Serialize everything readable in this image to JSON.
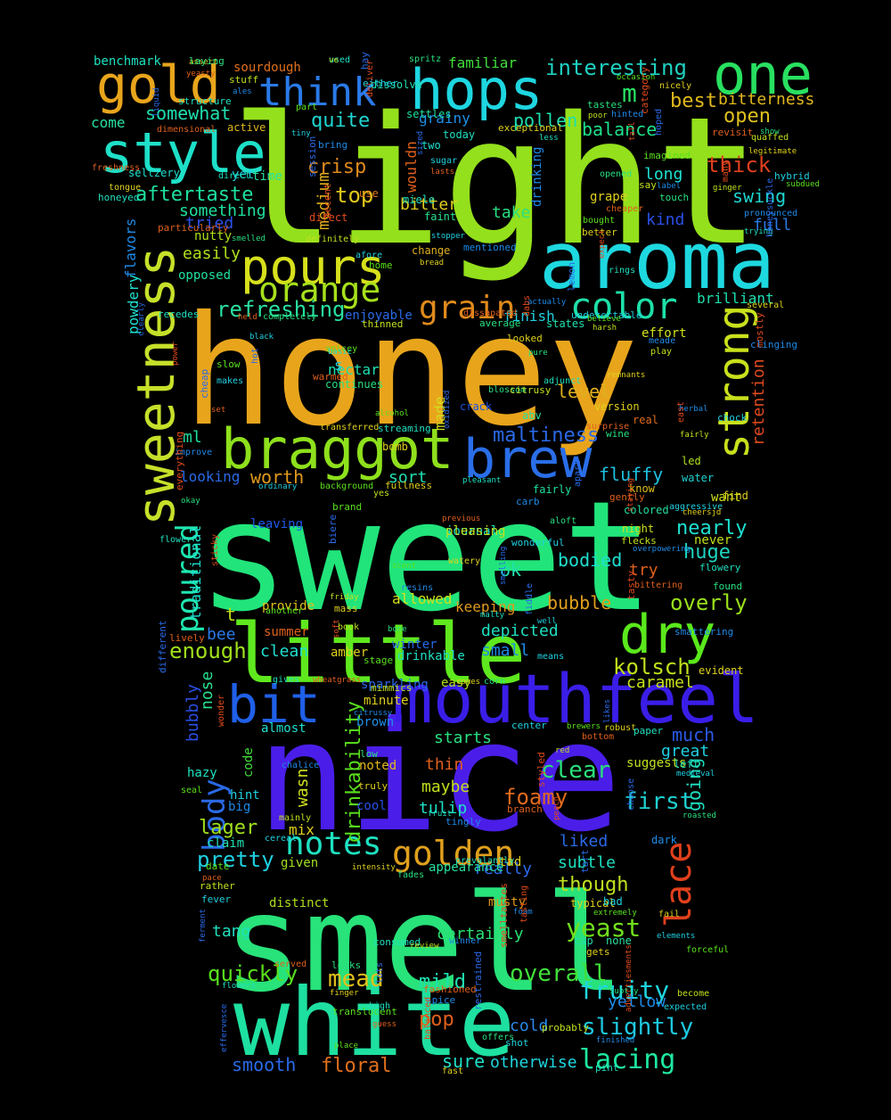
{
  "background": "#000000",
  "palette": [
    "#a8e01c",
    "#e8a51c",
    "#20e878",
    "#4a1ee8",
    "#19d8d8",
    "#d0e02c",
    "#2a70e8",
    "#e05a1c",
    "#1ed0c8",
    "#7ce820"
  ],
  "big_words": [
    {
      "text": "light",
      "color": "#94e01c"
    },
    {
      "text": "honey",
      "color": "#e8a51c"
    },
    {
      "text": "sweet",
      "color": "#21e47a"
    },
    {
      "text": "nice",
      "color": "#4a1ee8"
    },
    {
      "text": "smell",
      "color": "#28e27a"
    },
    {
      "text": "white",
      "color": "#1ee0a0"
    },
    {
      "text": "aroma",
      "color": "#1ed8e0"
    },
    {
      "text": "little",
      "color": "#5fe81e"
    },
    {
      "text": "mouthfeel",
      "color": "#3a1ee8"
    },
    {
      "text": "braggot",
      "color": "#8ee01c"
    },
    {
      "text": "brew",
      "color": "#2a6ee8"
    },
    {
      "text": "sweetness",
      "color": "#c6e02a"
    },
    {
      "text": "hops",
      "color": "#1ed6e0"
    },
    {
      "text": "one",
      "color": "#28e060"
    },
    {
      "text": "gold",
      "color": "#e8a51c"
    },
    {
      "text": "style",
      "color": "#1ee0c8"
    },
    {
      "text": "pours",
      "color": "#d6e01c"
    },
    {
      "text": "dry",
      "color": "#5ae81c"
    },
    {
      "text": "bit",
      "color": "#2060e8"
    },
    {
      "text": "strong",
      "color": "#c8e01c"
    },
    {
      "text": "think",
      "color": "#2a7ae8"
    },
    {
      "text": "orange",
      "color": "#a6e01c"
    },
    {
      "text": "color",
      "color": "#1ee0a8"
    },
    {
      "text": "grain",
      "color": "#e08a1c"
    },
    {
      "text": "golden",
      "color": "#e0a01c"
    },
    {
      "text": "notes",
      "color": "#1ee0c0"
    },
    {
      "text": "lace",
      "color": "#e0401c"
    },
    {
      "text": "body",
      "color": "#2a6ae8"
    },
    {
      "text": "poured",
      "color": "#1ee8b0"
    },
    {
      "text": "lacing",
      "color": "#1ee8a0"
    },
    {
      "text": "fruity",
      "color": "#1ed6e0"
    },
    {
      "text": "mead",
      "color": "#e0c01c"
    },
    {
      "text": "slightly",
      "color": "#1ec8e0"
    },
    {
      "text": "yeast",
      "color": "#70e01c"
    },
    {
      "text": "first",
      "color": "#1ed0d0"
    },
    {
      "text": "clear",
      "color": "#2ae07a"
    },
    {
      "text": "foamy",
      "color": "#e06a1c"
    },
    {
      "text": "overly",
      "color": "#9ae01c"
    },
    {
      "text": "kolsch",
      "color": "#c0e01c"
    },
    {
      "text": "overall",
      "color": "#40e03a"
    },
    {
      "text": "enough",
      "color": "#a0e01c"
    },
    {
      "text": "quickly",
      "color": "#58e01c"
    },
    {
      "text": "refreshing",
      "color": "#28e0a0"
    },
    {
      "text": "interesting",
      "color": "#1ed0c0"
    },
    {
      "text": "balance",
      "color": "#1ee08a"
    },
    {
      "text": "bitterness",
      "color": "#e0b81c"
    },
    {
      "text": "aftertaste",
      "color": "#1ee0a0"
    },
    {
      "text": "somewhat",
      "color": "#1ee0b0"
    },
    {
      "text": "maltiness",
      "color": "#2a6ae8"
    },
    {
      "text": "retention",
      "color": "#e04a1c"
    },
    {
      "text": "drinkability",
      "color": "#5ae01c"
    },
    {
      "text": "pretty",
      "color": "#1ed0e0"
    },
    {
      "text": "lager",
      "color": "#a0e01c"
    },
    {
      "text": "smooth",
      "color": "#2a6ae8"
    },
    {
      "text": "floral",
      "color": "#e0701c"
    },
    {
      "text": "sure",
      "color": "#1ee0c8"
    },
    {
      "text": "otherwise",
      "color": "#1ed6e0"
    },
    {
      "text": "though",
      "color": "#c0e01c"
    },
    {
      "text": "certainly",
      "color": "#28e070"
    },
    {
      "text": "huge",
      "color": "#1ed6c0"
    },
    {
      "text": "nearly",
      "color": "#1ee0d0"
    },
    {
      "text": "bubble",
      "color": "#e0a01c"
    },
    {
      "text": "bodied",
      "color": "#1ee0d0"
    },
    {
      "text": "fluffy",
      "color": "#1ec0e0"
    },
    {
      "text": "thick",
      "color": "#e0401c"
    },
    {
      "text": "open",
      "color": "#e0c01c"
    },
    {
      "text": "best",
      "color": "#e0b81c"
    },
    {
      "text": "m",
      "color": "#28e060"
    },
    {
      "text": "swing",
      "color": "#1ed6d0"
    },
    {
      "text": "crisp",
      "color": "#e08a1c"
    },
    {
      "text": "top",
      "color": "#e0c81c"
    },
    {
      "text": "quite",
      "color": "#1ed6d0"
    },
    {
      "text": "pollen",
      "color": "#1ee0b0"
    },
    {
      "text": "level",
      "color": "#e0b01c"
    },
    {
      "text": "worth",
      "color": "#e09a1c"
    },
    {
      "text": "tulip",
      "color": "#1ee0c8"
    },
    {
      "text": "maybe",
      "color": "#c0e01c"
    },
    {
      "text": "pop",
      "color": "#e0601c"
    },
    {
      "text": "mild",
      "color": "#1ee0b0"
    },
    {
      "text": "cold",
      "color": "#2a8ae8"
    },
    {
      "text": "yellow",
      "color": "#1e8ae8"
    },
    {
      "text": "tang",
      "color": "#1ee0c0"
    },
    {
      "text": "much",
      "color": "#2a5ae8"
    },
    {
      "text": "great",
      "color": "#1ed0e0"
    },
    {
      "text": "going",
      "color": "#1ee0c0"
    },
    {
      "text": "really",
      "color": "#2a6ae8"
    },
    {
      "text": "subtle",
      "color": "#1ee0c0"
    },
    {
      "text": "liked",
      "color": "#2a6ae8"
    },
    {
      "text": "thin",
      "color": "#e0601c"
    },
    {
      "text": "starts",
      "color": "#28e080"
    },
    {
      "text": "t",
      "color": "#c0e01c"
    },
    {
      "text": "ok",
      "color": "#1ee0b0"
    },
    {
      "text": "try",
      "color": "#e0601c"
    },
    {
      "text": "full",
      "color": "#2a7ae8"
    },
    {
      "text": "kind",
      "color": "#2a50e8"
    },
    {
      "text": "long",
      "color": "#1ee0d0"
    },
    {
      "text": "take",
      "color": "#28e080"
    },
    {
      "text": "bitter",
      "color": "#e0d01c"
    },
    {
      "text": "grainy",
      "color": "#1e90e8"
    },
    {
      "text": "medium",
      "color": "#e0b01c"
    },
    {
      "text": "tried",
      "color": "#2a50e8"
    },
    {
      "text": "something",
      "color": "#1ee0a0"
    },
    {
      "text": "easily",
      "color": "#b0e01c"
    },
    {
      "text": "clean",
      "color": "#1ee0d0"
    },
    {
      "text": "bee",
      "color": "#2a7ae8"
    },
    {
      "text": "nose",
      "color": "#28e090"
    },
    {
      "text": "bubbly",
      "color": "#2a50e8"
    },
    {
      "text": "caramel",
      "color": "#c8e01c"
    },
    {
      "text": "small",
      "color": "#1e8ae8"
    },
    {
      "text": "depicted",
      "color": "#1ee0c0"
    },
    {
      "text": "keeping",
      "color": "#e09a1c"
    },
    {
      "text": "allowed",
      "color": "#d0e01c"
    },
    {
      "text": "wasn",
      "color": "#d0e01c"
    },
    {
      "text": "mix",
      "color": "#e0d01c"
    },
    {
      "text": "finish",
      "color": "#1ed0e0"
    },
    {
      "text": "brilliant",
      "color": "#1ee0b0"
    },
    {
      "text": "effort",
      "color": "#d0e01c"
    },
    {
      "text": "wouldn",
      "color": "#e0601c"
    },
    {
      "text": "ml",
      "color": "#1ee0a0"
    },
    {
      "text": "made",
      "color": "#d0e01c"
    },
    {
      "text": "traditional",
      "color": "#1ee0d0"
    },
    {
      "text": "flavors",
      "color": "#1e8ae8"
    },
    {
      "text": "powdery",
      "color": "#1ee0d0"
    },
    {
      "text": "come",
      "color": "#28e0a0"
    },
    {
      "text": "enjoyable",
      "color": "#2a6ae8"
    },
    {
      "text": "benchmark",
      "color": "#1ee0c0"
    },
    {
      "text": "familiar",
      "color": "#40e03a"
    },
    {
      "text": "drinking",
      "color": "#1e8ae8"
    },
    {
      "text": "nectar",
      "color": "#1ee0b0"
    },
    {
      "text": "s",
      "color": "#1ed0e0"
    },
    {
      "text": "sort",
      "color": "#1ee0b0"
    },
    {
      "text": "looking",
      "color": "#2a6ae8"
    },
    {
      "text": "leaving",
      "color": "#1e5ae8"
    },
    {
      "text": "opposed",
      "color": "#1ee0a0"
    },
    {
      "text": "nutty",
      "color": "#b0e01c"
    },
    {
      "text": "claim",
      "color": "#1ee0b0"
    },
    {
      "text": "hint",
      "color": "#1ed0e0"
    },
    {
      "text": "code",
      "color": "#40e03a"
    },
    {
      "text": "hazy",
      "color": "#1ee0c0"
    },
    {
      "text": "big",
      "color": "#1e8ae8"
    },
    {
      "text": "cool",
      "color": "#2a50e8"
    },
    {
      "text": "noted",
      "color": "#e0b81c"
    },
    {
      "text": "brown",
      "color": "#1e90e8"
    },
    {
      "text": "sparkling",
      "color": "#2a6ae8"
    },
    {
      "text": "minute",
      "color": "#e0d01c"
    },
    {
      "text": "easy",
      "color": "#b0e01c"
    },
    {
      "text": "drinkable",
      "color": "#1ee0c0"
    },
    {
      "text": "winter",
      "color": "#2a6ae8"
    },
    {
      "text": "amber",
      "color": "#e0d01c"
    },
    {
      "text": "summer",
      "color": "#e0601c"
    },
    {
      "text": "provide",
      "color": "#e0c01c"
    },
    {
      "text": "almost",
      "color": "#1ee0d0"
    },
    {
      "text": "distinct",
      "color": "#b0e01c"
    },
    {
      "text": "given",
      "color": "#a0e01c"
    },
    {
      "text": "appearance",
      "color": "#28e0a0"
    },
    {
      "text": "tad",
      "color": "#e0d01c"
    },
    {
      "text": "musty",
      "color": "#e09a1c"
    },
    {
      "text": "typical",
      "color": "#e0d01c"
    },
    {
      "text": "bad",
      "color": "#1ed0e0"
    },
    {
      "text": "cap",
      "color": "#1ee0b0"
    },
    {
      "text": "none",
      "color": "#28e0a0"
    },
    {
      "text": "dark",
      "color": "#1e8ae8"
    },
    {
      "text": "suggests",
      "color": "#c0e01c"
    },
    {
      "text": "left",
      "color": "#1ee0c0"
    },
    {
      "text": "evident",
      "color": "#e0d01c"
    },
    {
      "text": "never",
      "color": "#c0e01c"
    },
    {
      "text": "want",
      "color": "#d0e01c"
    },
    {
      "text": "find",
      "color": "#e0d01c"
    },
    {
      "text": "water",
      "color": "#1ed0d0"
    },
    {
      "text": "led",
      "color": "#b0e01c"
    },
    {
      "text": "real",
      "color": "#e06a1c"
    },
    {
      "text": "version",
      "color": "#e0d01c"
    },
    {
      "text": "night",
      "color": "#d0e01c"
    },
    {
      "text": "colored",
      "color": "#1ee0a0"
    },
    {
      "text": "know",
      "color": "#e0c01c"
    },
    {
      "text": "fairly",
      "color": "#1ee0a0"
    },
    {
      "text": "states",
      "color": "#1ee0b0"
    },
    {
      "text": "change",
      "color": "#e0b01c"
    },
    {
      "text": "two",
      "color": "#1ee0d0"
    },
    {
      "text": "today",
      "color": "#1ee0c0"
    },
    {
      "text": "grape",
      "color": "#e0d01c"
    },
    {
      "text": "faint",
      "color": "#28e090"
    },
    {
      "text": "settles",
      "color": "#1ee0a0"
    },
    {
      "text": "dissolve",
      "color": "#1ee0b0"
    },
    {
      "text": "active",
      "color": "#e0b81c"
    },
    {
      "text": "sourdough",
      "color": "#e0701c"
    },
    {
      "text": "seltzery",
      "color": "#1ee0d0"
    },
    {
      "text": "yet",
      "color": "#1ed0e0"
    },
    {
      "text": "time",
      "color": "#28e0a0"
    },
    {
      "text": "direct",
      "color": "#e04a1c"
    },
    {
      "text": "use",
      "color": "#e07a1c"
    },
    {
      "text": "miele",
      "color": "#1ee0c0"
    },
    {
      "text": "bomb",
      "color": "#e0d01c"
    },
    {
      "text": "continues",
      "color": "#28e080"
    },
    {
      "text": "crack",
      "color": "#1e50e8"
    },
    {
      "text": "abv",
      "color": "#28e0a0"
    },
    {
      "text": "journal",
      "color": "#1ee0c8"
    },
    {
      "text": "pleasing",
      "color": "#c0e01c"
    }
  ],
  "small_words": [
    "assert",
    "used",
    "hay",
    "yeasty",
    "spritz",
    "stuff",
    "ales",
    "deliver",
    "either",
    "occasion",
    "nicely",
    "structure",
    "liquid",
    "dimensional",
    "tastes",
    "poor",
    "hinted",
    "category",
    "tiny",
    "part",
    "exceptional",
    "less",
    "hoped",
    "revisit",
    "show",
    "quaffed",
    "bring",
    "tall",
    "sugar",
    "imagined",
    "legitimate",
    "direct",
    "session",
    "lasts",
    "opened",
    "say",
    "label",
    "many",
    "hybrid",
    "subdued",
    "tongue",
    "honeyed",
    "sized",
    "cheaper",
    "touch",
    "ginger",
    "pronounced",
    "decent",
    "stopper",
    "bought",
    "better",
    "trying",
    "honeysuckle",
    "particularly",
    "smelled",
    "definitely",
    "mentioned",
    "expect",
    "afore",
    "home",
    "bread",
    "rings",
    "lemon",
    "held",
    "completely",
    "thinned",
    "actually",
    "dabs",
    "undetectable",
    "believe",
    "several",
    "recedes",
    "clearly",
    "dissapated",
    "average",
    "harsh",
    "meade",
    "mostly",
    "black",
    "spicey",
    "looked",
    "basic",
    "hot",
    "warmed",
    "pure",
    "play",
    "clinging",
    "power",
    "makes",
    "slow",
    "remnants",
    "adjunct",
    "cheap",
    "set",
    "blossom",
    "citrusy",
    "herbal",
    "east",
    "chock",
    "alcohol",
    "transferred",
    "streaming",
    "oxidized",
    "surprise",
    "wine",
    "fairly",
    "improve",
    "everything",
    "ordinary",
    "background",
    "fullness",
    "pleasant",
    "apart",
    "gently",
    "okay",
    "yes",
    "carb",
    "staying",
    "aggressive",
    "brand",
    "cheersjd",
    "flower",
    "biere",
    "previous",
    "aloft",
    "flecks",
    "overpowering",
    "sticky",
    "wonderful",
    "scent",
    "watery",
    "flowery",
    "smelling",
    "bittering",
    "found",
    "friday",
    "resins",
    "tasty",
    "well",
    "another",
    "mass",
    "malty",
    "fiddle",
    "lively",
    "bone",
    "book",
    "smattering",
    "soft",
    "means",
    "stage",
    "cones",
    "gives",
    "different",
    "wheatgrass",
    "corn",
    "mimmics",
    "citrussy",
    "wonder",
    "center",
    "brewers",
    "robust",
    "paper",
    "likes",
    "bottom",
    "low",
    "red",
    "chalice",
    "styled",
    "medieval",
    "seal",
    "truly",
    "fruit",
    "choose",
    "branch",
    "roasted",
    "mainly",
    "tingly",
    "peach",
    "cereal",
    "date",
    "intensity",
    "prevalantly",
    "tart",
    "pace",
    "fades",
    "rather",
    "foam",
    "tasting",
    "fever",
    "extremely",
    "fail",
    "consumed",
    "ferment",
    "served",
    "looks",
    "review",
    "winner",
    "smelltastes",
    "elements",
    "forceful",
    "gets",
    "flowers",
    "lots",
    "fashioned",
    "subtly",
    "become",
    "spice",
    "advertiesments",
    "expected",
    "translucent",
    "finger",
    "high",
    "restrained",
    "guess",
    "offers",
    "probably",
    "finished",
    "balanced",
    "shot",
    "place",
    "fast",
    "pint",
    "effervesce",
    "freshness",
    "laying",
    "ve"
  ]
}
